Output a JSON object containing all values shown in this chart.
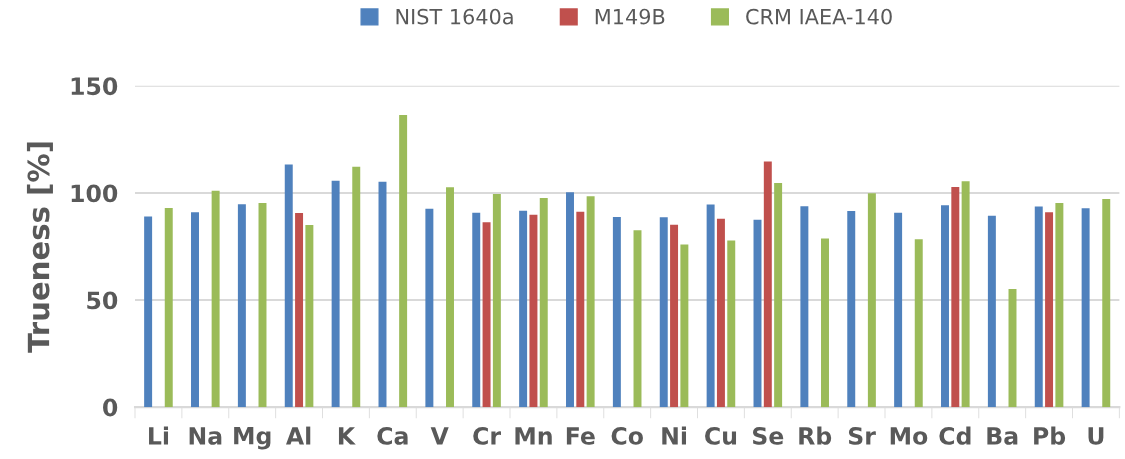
{
  "chart_data": {
    "type": "bar",
    "ylabel": "Trueness [%]",
    "categories": [
      "Li",
      "Na",
      "Mg",
      "Al",
      "K",
      "Ca",
      "V",
      "Cr",
      "Mn",
      "Fe",
      "Co",
      "Ni",
      "Cu",
      "Se",
      "Rb",
      "Sr",
      "Mo",
      "Cd",
      "Ba",
      "Pb",
      "U"
    ],
    "series": [
      {
        "name": "NIST 1640a",
        "color": "#4f81bd",
        "values": [
          89,
          91,
          94.7,
          113.3,
          105.7,
          105.2,
          92.6,
          90.7,
          91.7,
          100.3,
          88.8,
          88.6,
          94.6,
          87.5,
          93.8,
          91.6,
          90.7,
          94.3,
          89.4,
          93.7,
          92.9
        ]
      },
      {
        "name": "M149B",
        "color": "#c0504d",
        "values": [
          null,
          null,
          null,
          90.6,
          null,
          null,
          null,
          86.3,
          89.8,
          91.2,
          null,
          85.2,
          87.9,
          114.7,
          null,
          null,
          null,
          102.8,
          null,
          91,
          null
        ]
      },
      {
        "name": "CRM IAEA-140",
        "color": "#9bbb59",
        "values": [
          93,
          101,
          95.3,
          85,
          112.2,
          136.4,
          102.7,
          99.5,
          97.6,
          98.4,
          82.6,
          75.9,
          77.8,
          104.6,
          78.7,
          99.8,
          78.4,
          105.4,
          55.2,
          95.3,
          97.2
        ]
      }
    ],
    "ylim": [
      0,
      150
    ],
    "yticks": [
      0,
      50,
      100,
      150
    ],
    "grid": "y",
    "legend": "top"
  }
}
